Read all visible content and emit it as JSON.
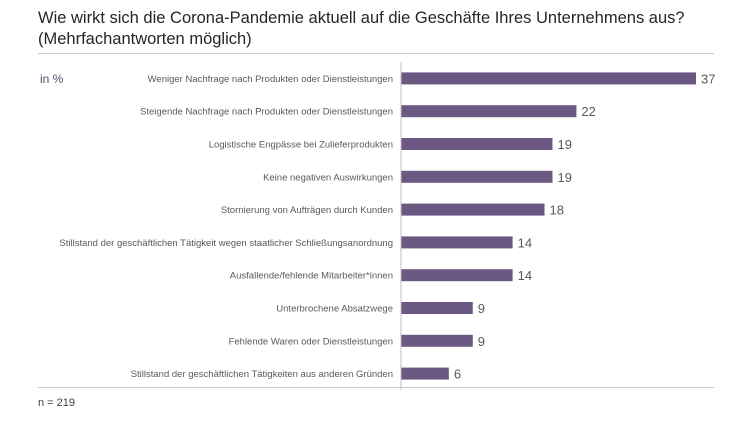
{
  "title_line1": "Wie wirkt sich die Corona-Pandemie aktuell auf die Geschäfte Ihres Unternehmens aus?",
  "title_line2": "(Mehrfachantworten möglich)",
  "unit_label": "in %",
  "footnote": "n = 219",
  "colors": {
    "bar": "#6b5883",
    "axis": "#bfbfbf"
  },
  "chart_data": {
    "type": "bar",
    "orientation": "horizontal",
    "categories": [
      "Weniger Nachfrage nach Produkten oder Dienstleistungen",
      "Steigende Nachfrage nach Produkten oder Dienstleistungen",
      "Logistische Engpässe bei Zulieferprodukten",
      "Keine negativen Auswirkungen",
      "Stornierung von Aufträgen durch Kunden",
      "Stillstand der geschäftlichen Tätigkeit wegen staatlicher Schließungsanordnung",
      "Ausfallende/fehlende Mitarbeiter*innen",
      "Unterbrochene Absatzwege",
      "Fehlende Waren oder Dienstleistungen",
      "Stillstand der geschäftlichen Tätigkeiten aus anderen Gründen"
    ],
    "values": [
      37,
      22,
      19,
      19,
      18,
      14,
      14,
      9,
      9,
      6
    ],
    "xlim": [
      0,
      37
    ],
    "grid": false,
    "data_labels": true
  }
}
